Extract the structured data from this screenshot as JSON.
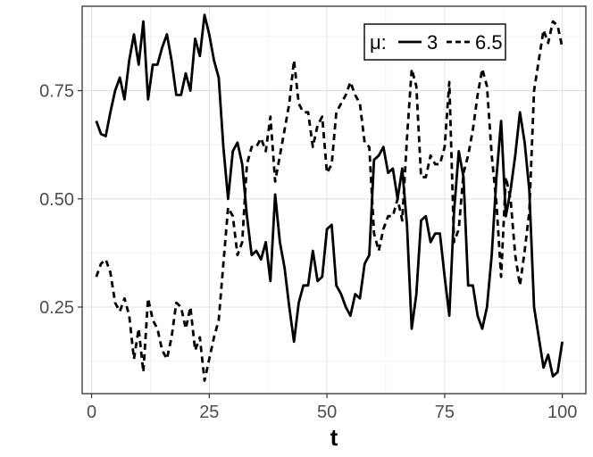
{
  "chart_data": {
    "type": "line",
    "title": "",
    "xlabel": "t",
    "ylabel": "",
    "xlim": [
      -2,
      105
    ],
    "ylim": [
      0.05,
      0.945
    ],
    "x_ticks": [
      0,
      25,
      50,
      75,
      100
    ],
    "x_tick_labels": [
      "0",
      "25",
      "50",
      "75",
      "100"
    ],
    "y_ticks": [
      0.25,
      0.5,
      0.75
    ],
    "y_tick_labels": [
      "0.25",
      "0.50",
      "0.75"
    ],
    "grid": true,
    "legend": {
      "title": "μ:",
      "placement": "top-right"
    },
    "x": [
      1,
      2,
      3,
      4,
      5,
      6,
      7,
      8,
      9,
      10,
      11,
      12,
      13,
      14,
      15,
      16,
      17,
      18,
      19,
      20,
      21,
      22,
      23,
      24,
      25,
      26,
      27,
      28,
      29,
      30,
      31,
      32,
      33,
      34,
      35,
      36,
      37,
      38,
      39,
      40,
      41,
      42,
      43,
      44,
      45,
      46,
      47,
      48,
      49,
      50,
      51,
      52,
      53,
      54,
      55,
      56,
      57,
      58,
      59,
      60,
      61,
      62,
      63,
      64,
      65,
      66,
      67,
      68,
      69,
      70,
      71,
      72,
      73,
      74,
      75,
      76,
      77,
      78,
      79,
      80,
      81,
      82,
      83,
      84,
      85,
      86,
      87,
      88,
      89,
      90,
      91,
      92,
      93,
      94,
      95,
      96,
      97,
      98,
      99,
      100
    ],
    "series": [
      {
        "name": "3",
        "style": "solid",
        "values": [
          0.68,
          0.65,
          0.645,
          0.7,
          0.75,
          0.78,
          0.73,
          0.82,
          0.88,
          0.81,
          0.91,
          0.73,
          0.81,
          0.81,
          0.85,
          0.88,
          0.82,
          0.74,
          0.74,
          0.79,
          0.75,
          0.87,
          0.83,
          0.925,
          0.88,
          0.82,
          0.78,
          0.62,
          0.5,
          0.61,
          0.63,
          0.58,
          0.46,
          0.37,
          0.38,
          0.36,
          0.4,
          0.31,
          0.51,
          0.4,
          0.34,
          0.25,
          0.17,
          0.26,
          0.3,
          0.3,
          0.38,
          0.31,
          0.32,
          0.43,
          0.44,
          0.3,
          0.28,
          0.25,
          0.23,
          0.28,
          0.27,
          0.35,
          0.37,
          0.59,
          0.6,
          0.62,
          0.56,
          0.57,
          0.5,
          0.57,
          0.44,
          0.2,
          0.28,
          0.45,
          0.46,
          0.4,
          0.42,
          0.42,
          0.32,
          0.23,
          0.47,
          0.61,
          0.55,
          0.3,
          0.3,
          0.23,
          0.2,
          0.25,
          0.37,
          0.55,
          0.68,
          0.46,
          0.52,
          0.6,
          0.7,
          0.63,
          0.52,
          0.25,
          0.18,
          0.11,
          0.14,
          0.09,
          0.1,
          0.17
        ]
      },
      {
        "name": "6.5",
        "style": "dashed",
        "values": [
          0.32,
          0.35,
          0.36,
          0.33,
          0.26,
          0.24,
          0.27,
          0.23,
          0.13,
          0.2,
          0.1,
          0.27,
          0.22,
          0.2,
          0.15,
          0.13,
          0.18,
          0.26,
          0.25,
          0.2,
          0.25,
          0.15,
          0.18,
          0.08,
          0.13,
          0.18,
          0.22,
          0.35,
          0.48,
          0.46,
          0.37,
          0.4,
          0.58,
          0.62,
          0.62,
          0.64,
          0.61,
          0.69,
          0.54,
          0.6,
          0.66,
          0.72,
          0.82,
          0.72,
          0.7,
          0.7,
          0.62,
          0.67,
          0.69,
          0.56,
          0.58,
          0.7,
          0.72,
          0.74,
          0.77,
          0.74,
          0.72,
          0.63,
          0.62,
          0.42,
          0.38,
          0.43,
          0.46,
          0.46,
          0.5,
          0.45,
          0.64,
          0.8,
          0.76,
          0.55,
          0.55,
          0.6,
          0.58,
          0.58,
          0.62,
          0.77,
          0.4,
          0.43,
          0.56,
          0.6,
          0.66,
          0.74,
          0.8,
          0.76,
          0.6,
          0.49,
          0.32,
          0.55,
          0.5,
          0.37,
          0.3,
          0.38,
          0.47,
          0.75,
          0.82,
          0.89,
          0.86,
          0.91,
          0.9,
          0.85
        ]
      }
    ]
  }
}
